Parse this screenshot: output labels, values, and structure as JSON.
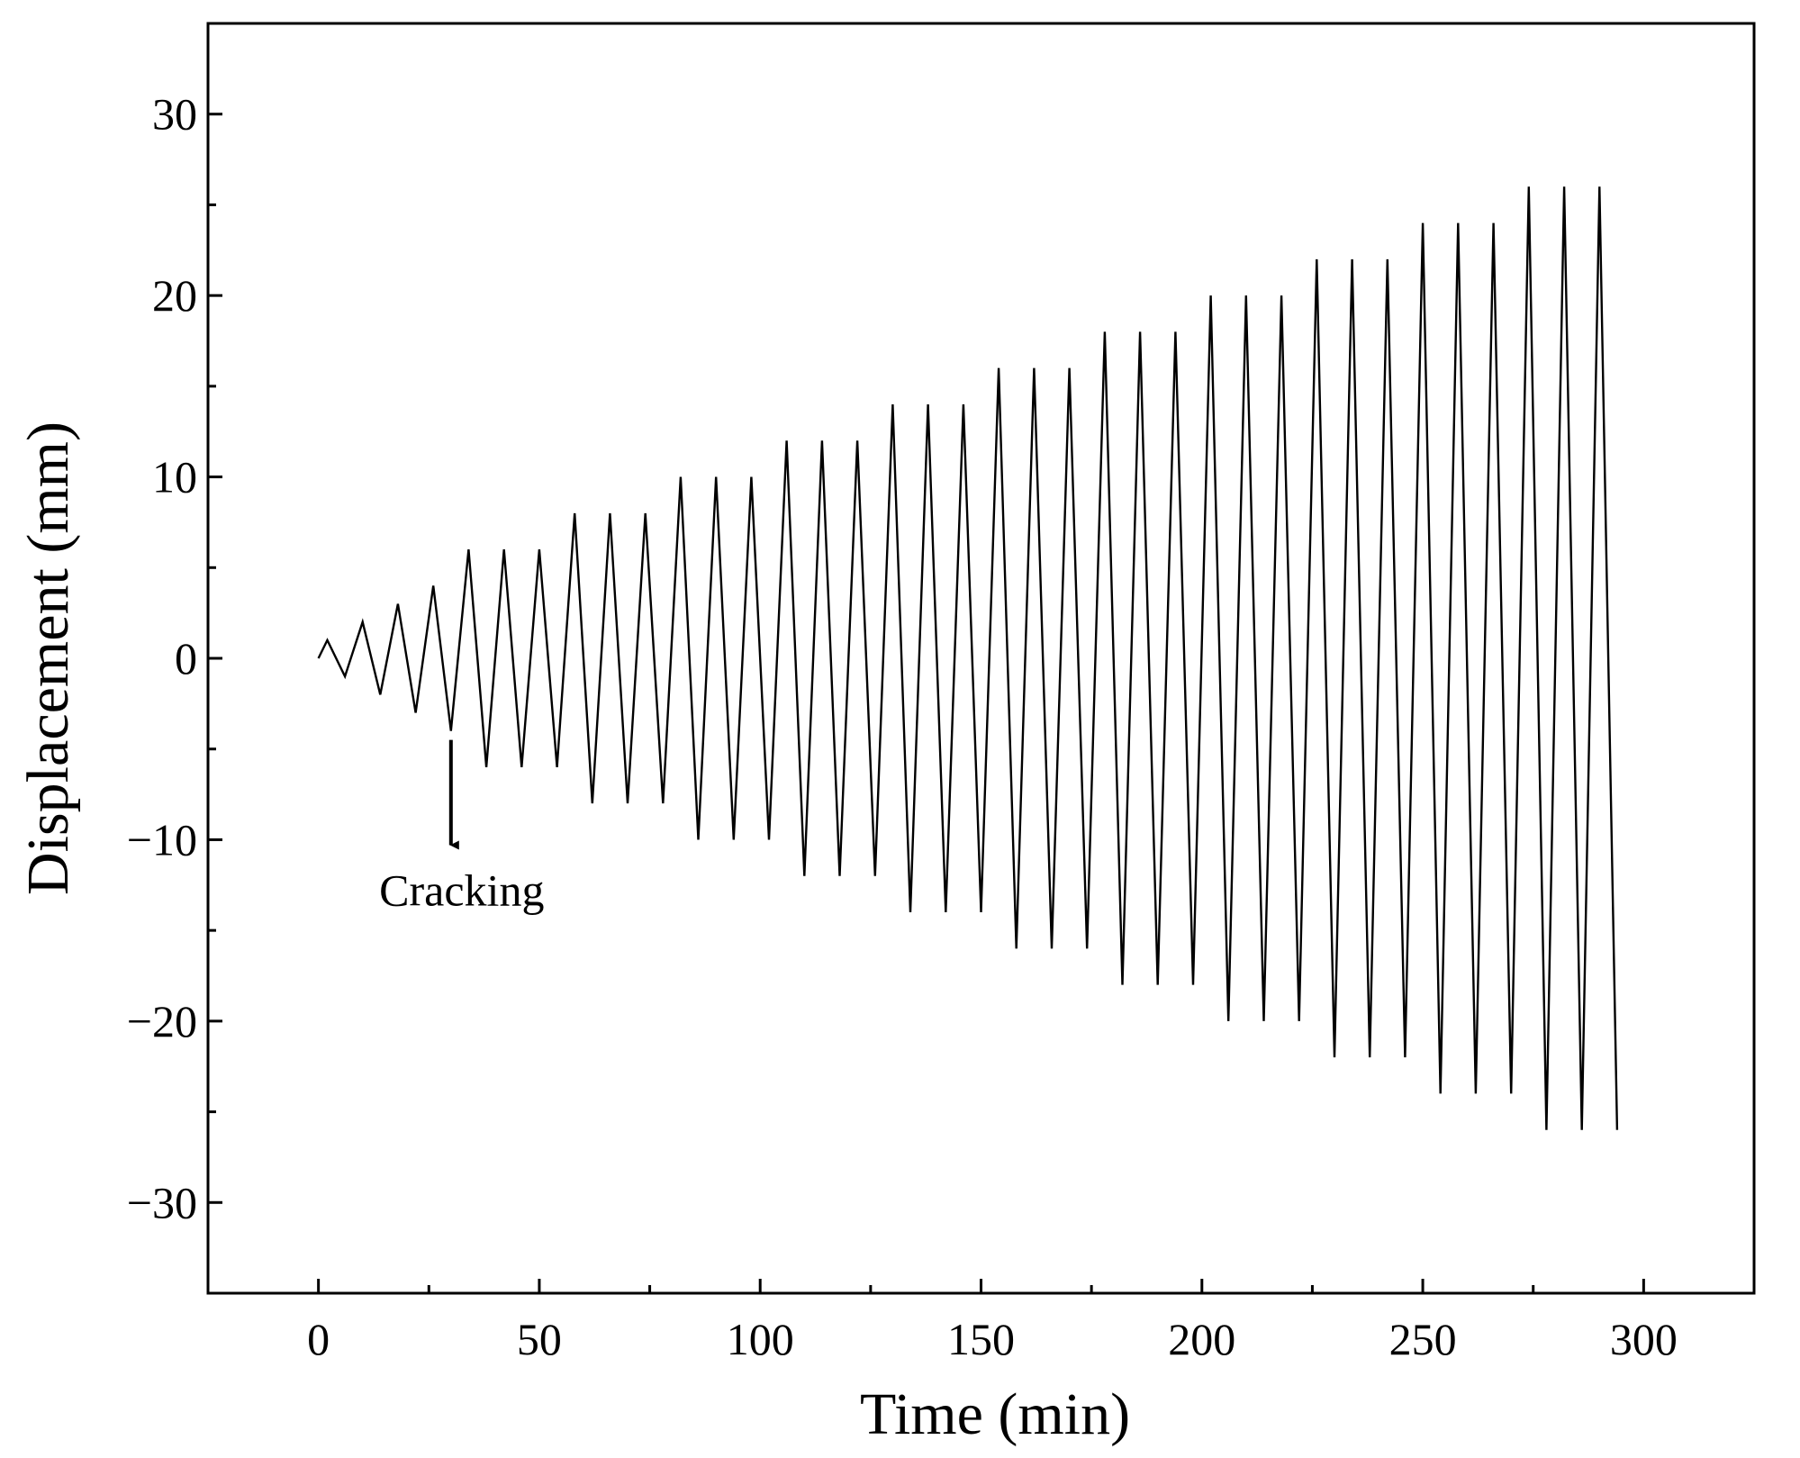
{
  "chart_data": {
    "type": "line",
    "title": "",
    "xlabel": "Time (min)",
    "ylabel": "Displacement (mm)",
    "xlim": [
      -25,
      325
    ],
    "ylim": [
      -35,
      35
    ],
    "x_ticks": [
      0,
      50,
      100,
      150,
      200,
      250,
      300
    ],
    "x_tick_labels": [
      "0",
      "50",
      "100",
      "150",
      "200",
      "250",
      "300"
    ],
    "x_minor_ticks": [
      25,
      75,
      125,
      175,
      225,
      275
    ],
    "y_ticks": [
      -30,
      -20,
      -10,
      0,
      10,
      20,
      30
    ],
    "y_tick_labels": [
      "−30",
      "−20",
      "−10",
      "0",
      "10",
      "20",
      "30"
    ],
    "y_minor_ticks": [
      -25,
      -15,
      -5,
      5,
      15,
      25
    ],
    "grid": false,
    "series": [
      {
        "name": "Displacement",
        "color": "#000000",
        "x": [
          0,
          2,
          6,
          10,
          14,
          18,
          22,
          26,
          30,
          34,
          38,
          42,
          46,
          50,
          54,
          58,
          62,
          66,
          70,
          74,
          78,
          82,
          86,
          90,
          94,
          98,
          102,
          106,
          110,
          114,
          118,
          122,
          126,
          130,
          134,
          138,
          142,
          146,
          150,
          154,
          158,
          162,
          166,
          170,
          174,
          178,
          182,
          186,
          190,
          194,
          198,
          202,
          206,
          210,
          214,
          218,
          222,
          226,
          230,
          234,
          238,
          242,
          246,
          250,
          254,
          258,
          262,
          266,
          270,
          274,
          278,
          282,
          286,
          290,
          294
        ],
        "values": [
          0,
          1,
          -1,
          2,
          -2,
          3,
          -3,
          4,
          -4,
          6,
          -6,
          6,
          -6,
          6,
          -6,
          8,
          -8,
          8,
          -8,
          8,
          -8,
          10,
          -10,
          10,
          -10,
          10,
          -10,
          12,
          -12,
          12,
          -12,
          12,
          -12,
          14,
          -14,
          14,
          -14,
          14,
          -14,
          16,
          -16,
          16,
          -16,
          16,
          -16,
          18,
          -18,
          18,
          -18,
          18,
          -18,
          20,
          -20,
          20,
          -20,
          20,
          -20,
          22,
          -22,
          22,
          -22,
          22,
          -22,
          24,
          -24,
          24,
          -24,
          24,
          -24,
          26,
          -26,
          26,
          -26,
          26,
          -26
        ]
      }
    ],
    "annotations": [
      {
        "text": "Cracking",
        "arrow_from": [
          30,
          -4.5
        ],
        "arrow_to": [
          30,
          -10.3
        ]
      }
    ],
    "legend": "none"
  }
}
